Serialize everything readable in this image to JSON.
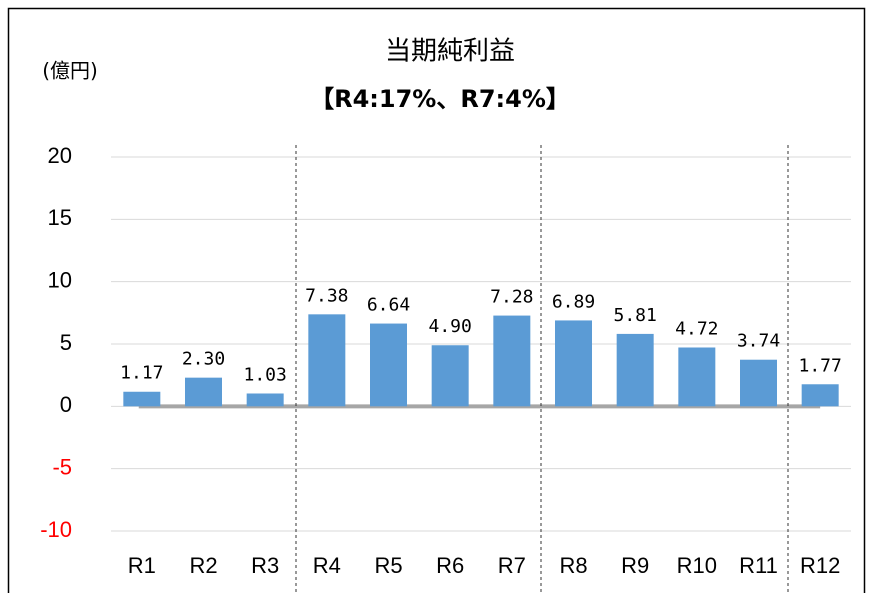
{
  "chart_data": {
    "type": "bar",
    "title": "当期純利益",
    "subtitle": "【R4:17%、R7:4%】",
    "unit_label": "(億円)",
    "categories": [
      "R1",
      "R2",
      "R3",
      "R4",
      "R5",
      "R6",
      "R7",
      "R8",
      "R9",
      "R10",
      "R11",
      "R12"
    ],
    "values": [
      1.17,
      2.3,
      1.03,
      7.38,
      6.64,
      4.9,
      7.28,
      6.89,
      5.81,
      4.72,
      3.74,
      1.77
    ],
    "value_labels": [
      "1.17",
      "2.30",
      "1.03",
      "7.38",
      "6.64",
      "4.90",
      "7.28",
      "6.89",
      "5.81",
      "4.72",
      "3.74",
      "1.77"
    ],
    "color": "#5b9bd5",
    "ylim": [
      -10,
      20
    ],
    "yticks": [
      20,
      15,
      10,
      5,
      0,
      -5,
      -10
    ],
    "negative_tick_color": "#ff0000",
    "grid": true
  }
}
